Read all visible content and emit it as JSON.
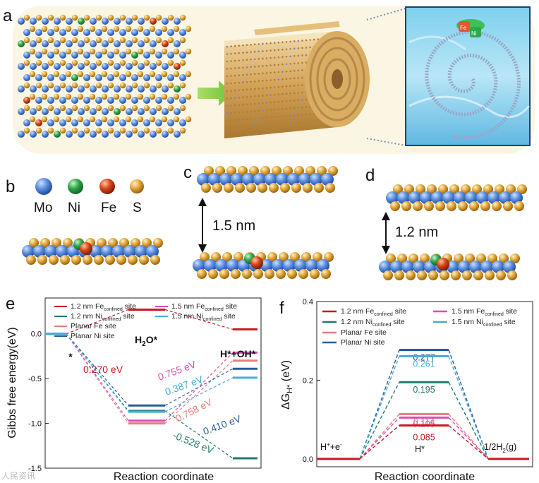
{
  "panels": {
    "a": {
      "label": "a"
    },
    "b": {
      "label": "b",
      "atoms": [
        {
          "name": "Mo",
          "color": "#5b8fe0"
        },
        {
          "name": "Ni",
          "color": "#2ea84c"
        },
        {
          "name": "Fe",
          "color": "#d8481b"
        },
        {
          "name": "S",
          "color": "#e2a83a"
        }
      ]
    },
    "c": {
      "label": "c",
      "spacing": "1.5 nm"
    },
    "d": {
      "label": "d",
      "spacing": "1.2 nm"
    },
    "a_inset": {
      "fe_tag": "Fe",
      "ni_tag": "Ni"
    }
  },
  "chart_data": [
    {
      "panel": "e",
      "type": "line",
      "ylabel": "Gibbs free energy(eV)",
      "xlabel": "Reaction coordinate",
      "ylim": [
        -1.5,
        0.4
      ],
      "yticks": [
        "0.0",
        "-0.5",
        "-1.0",
        "-1.5"
      ],
      "states": [
        "*",
        "H2O*",
        "H*+OH*"
      ],
      "legend": [
        {
          "text": "1.2 nm Fe",
          "sub": "confined",
          "tail": " site",
          "color": "#c8191f"
        },
        {
          "text": "1.2 nm Ni",
          "sub": "confined",
          "tail": " site",
          "color": "#1f7a6a"
        },
        {
          "text": "Planar Fe site",
          "sub": "",
          "tail": "",
          "color": "#e87d7d"
        },
        {
          "text": "Planar Ni site",
          "sub": "",
          "tail": "",
          "color": "#2a5d9a"
        },
        {
          "text": "1.5 nm Fe",
          "sub": "confined",
          "tail": " site",
          "color": "#d94fb4"
        },
        {
          "text": "1.5 nm Ni",
          "sub": "confined",
          "tail": " site",
          "color": "#4aaad6"
        }
      ],
      "series": [
        {
          "name": "1.2 nm Feconfined site",
          "color": "#c8191f",
          "values": [
            0.0,
            0.27,
            0.05
          ]
        },
        {
          "name": "1.2 nm Niconfined site",
          "color": "#1f7a6a",
          "values": [
            0.0,
            -0.86,
            -1.39
          ]
        },
        {
          "name": "Planar Fe site",
          "color": "#e87d7d",
          "values": [
            0.0,
            -1.0,
            -0.3
          ]
        },
        {
          "name": "Planar Ni site",
          "color": "#2a5d9a",
          "values": [
            0.0,
            -0.8,
            -0.39
          ]
        },
        {
          "name": "1.5 nm Feconfined site",
          "color": "#d94fb4",
          "values": [
            0.0,
            -0.97,
            -0.21
          ]
        },
        {
          "name": "1.5 nm Niconfined site",
          "color": "#4aaad6",
          "values": [
            0.0,
            -0.87,
            -0.49
          ]
        }
      ],
      "annotations": [
        {
          "text": "0.270 eV",
          "color": "#c8191f"
        },
        {
          "text": "0.755 eV",
          "color": "#d94fb4"
        },
        {
          "text": "0.387 eV",
          "color": "#4aaad6"
        },
        {
          "text": "0.758 eV",
          "color": "#e87d7d"
        },
        {
          "text": "0.410 eV",
          "color": "#2a5d9a"
        },
        {
          "text": "-0.528 eV",
          "color": "#1f7a6a"
        }
      ],
      "state_labels": {
        "start": "*",
        "mid": "H2O*",
        "end": "H*+OH*"
      }
    },
    {
      "panel": "f",
      "type": "line",
      "ylabel": "ΔGH* (eV)",
      "xlabel": "Reaction coordinate",
      "ylim": [
        -0.02,
        0.4
      ],
      "yticks": [
        "0.4",
        "0.2",
        "0.0"
      ],
      "states": [
        "H++e-",
        "H*",
        "1/2H2(g)"
      ],
      "legend": [
        {
          "text": "1.2 nm Fe",
          "sub": "confined",
          "tail": " site",
          "color": "#c8191f"
        },
        {
          "text": "1.2 nm Ni",
          "sub": "confined",
          "tail": " site",
          "color": "#1f7a6a"
        },
        {
          "text": "Planar Fe site",
          "sub": "",
          "tail": "",
          "color": "#e87d7d"
        },
        {
          "text": "Planar Ni site",
          "sub": "",
          "tail": "",
          "color": "#2a5d9a"
        },
        {
          "text": "1.5 nm Fe",
          "sub": "confined",
          "tail": " site",
          "color": "#d94fb4"
        },
        {
          "text": "1.5 nm Ni",
          "sub": "confined",
          "tail": " site",
          "color": "#4aaad6"
        }
      ],
      "series": [
        {
          "name": "Planar Ni site",
          "color": "#2a5d9a",
          "value": 0.277,
          "label": "0.277"
        },
        {
          "name": "1.5 nm Niconfined site",
          "color": "#4aaad6",
          "value": 0.261,
          "label": "0.261"
        },
        {
          "name": "1.2 nm Niconfined site",
          "color": "#1f7a6a",
          "value": 0.195,
          "label": "0.195"
        },
        {
          "name": "Planar Fe site",
          "color": "#e87d7d",
          "value": 0.114,
          "label": "0.114"
        },
        {
          "name": "1.5 nm Feconfined site",
          "color": "#d94fb4",
          "value": 0.105,
          "label": "0.105"
        },
        {
          "name": "1.2 nm Feconfined site",
          "color": "#c8191f",
          "value": 0.085,
          "label": "0.085"
        }
      ],
      "state_labels": {
        "start": "H+e",
        "mid": "H*",
        "end": "1/2H2(g)"
      }
    }
  ],
  "watermark": "人民资讯"
}
